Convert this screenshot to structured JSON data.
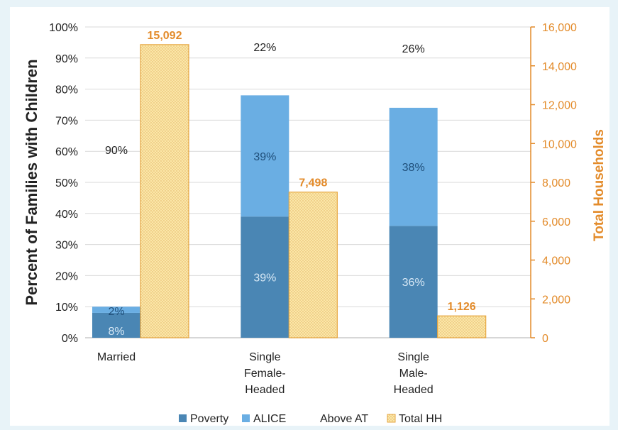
{
  "chart_data": {
    "type": "bar",
    "categories": [
      [
        "Married"
      ],
      [
        "Single",
        "Female-",
        "Headed"
      ],
      [
        "Single",
        "Male-",
        "Headed"
      ]
    ],
    "series": [
      {
        "name": "Poverty",
        "axis": "left",
        "stack": "pct",
        "values": [
          8,
          39,
          36
        ],
        "labels": [
          "8%",
          "39%",
          "36%"
        ],
        "color": "#4a86b4"
      },
      {
        "name": "ALICE",
        "axis": "left",
        "stack": "pct",
        "values": [
          2,
          39,
          38
        ],
        "labels": [
          "2%",
          "39%",
          "38%"
        ],
        "color": "#6aaee3"
      },
      {
        "name": "Above AT",
        "axis": "left",
        "stack": "pct",
        "values": [
          90,
          22,
          26
        ],
        "labels": [
          "90%",
          "22%",
          "26%"
        ],
        "color": "#ffffff"
      },
      {
        "name": "Total HH",
        "axis": "right",
        "values": [
          15092,
          7498,
          1126
        ],
        "labels": [
          "15,092",
          "7,498",
          "1,126"
        ],
        "color": "#fbe7a8"
      }
    ],
    "ylabel": "Percent of Families with Children",
    "ylabel_right": "Total Households",
    "ylim": [
      0,
      100
    ],
    "ylim_right": [
      0,
      16000
    ],
    "yticks": [
      "0%",
      "10%",
      "20%",
      "30%",
      "40%",
      "50%",
      "60%",
      "70%",
      "80%",
      "90%",
      "100%"
    ],
    "yticks_right": [
      "0",
      "2,000",
      "4,000",
      "6,000",
      "8,000",
      "10,000",
      "12,000",
      "14,000",
      "16,000"
    ],
    "legend_position": "bottom",
    "grid": true,
    "colors": {
      "left_axis": "#222222",
      "right_axis": "#e38b2a",
      "grid": "#d9d9d9"
    }
  }
}
